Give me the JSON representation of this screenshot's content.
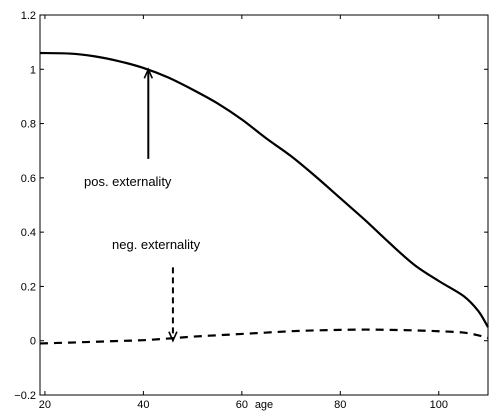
{
  "chart_data": {
    "type": "line",
    "title": "",
    "xlabel": "age",
    "ylabel": "",
    "xlim": [
      19,
      110
    ],
    "ylim": [
      -0.2,
      1.2
    ],
    "grid": false,
    "legend": "none",
    "xticks": [
      20,
      40,
      60,
      80,
      100
    ],
    "xtick_labels": [
      "20",
      "40",
      "60",
      "80",
      "100"
    ],
    "yticks": [
      -0.2,
      0,
      0.2,
      0.4,
      0.6,
      0.8,
      1,
      1.2
    ],
    "ytick_labels": [
      "−0.2",
      "0",
      "0.2",
      "0.4",
      "0.6",
      "0.8",
      "1",
      "1.2"
    ],
    "series": [
      {
        "name": "",
        "style": "solid",
        "color": "#000000",
        "x": [
          19,
          25,
          30,
          35,
          40,
          45,
          50,
          55,
          60,
          65,
          70,
          75,
          80,
          85,
          90,
          95,
          100,
          105,
          108,
          110
        ],
        "y": [
          1.06,
          1.058,
          1.048,
          1.03,
          1.005,
          0.97,
          0.925,
          0.875,
          0.815,
          0.745,
          0.68,
          0.605,
          0.525,
          0.445,
          0.36,
          0.28,
          0.22,
          0.165,
          0.11,
          0.05
        ]
      },
      {
        "name": "",
        "style": "dashed",
        "color": "#000000",
        "x": [
          19,
          25,
          30,
          35,
          40,
          45,
          50,
          55,
          60,
          65,
          70,
          75,
          80,
          85,
          90,
          95,
          100,
          105,
          108,
          110
        ],
        "y": [
          -0.01,
          -0.007,
          -0.004,
          -0.001,
          0.002,
          0.008,
          0.015,
          0.02,
          0.025,
          0.03,
          0.035,
          0.038,
          0.04,
          0.041,
          0.04,
          0.038,
          0.035,
          0.03,
          0.02,
          0.01
        ]
      }
    ],
    "annotations": [
      {
        "text": "pos. externality",
        "arrow_from": [
          41,
          0.67
        ],
        "arrow_to": [
          41,
          1.0
        ],
        "style": "solid"
      },
      {
        "text": "neg. externality",
        "arrow_from": [
          46,
          0.27
        ],
        "arrow_to": [
          46,
          0.0
        ],
        "style": "dashed"
      }
    ]
  }
}
